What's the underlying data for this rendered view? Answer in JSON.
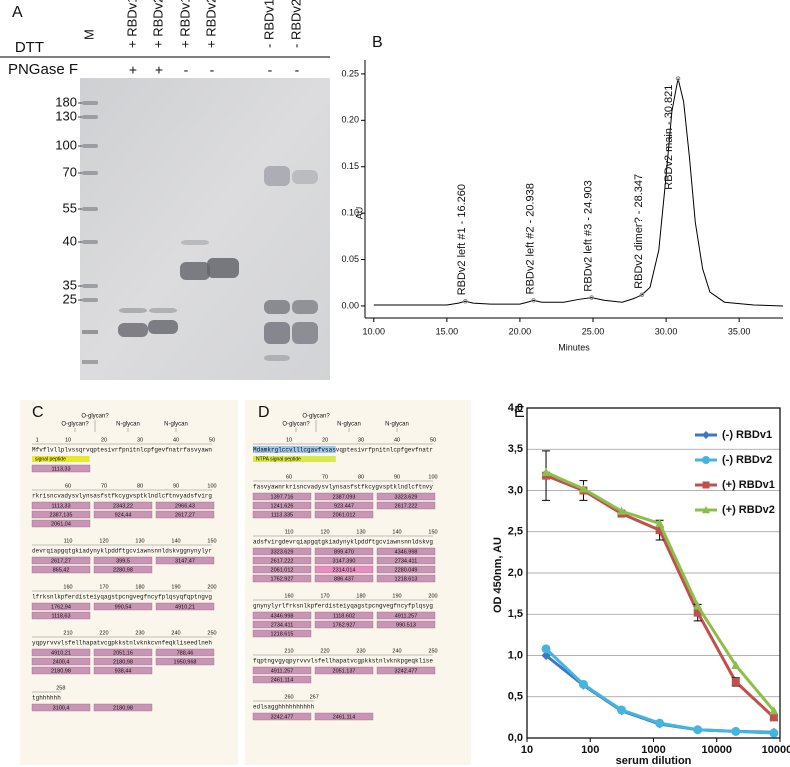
{
  "panel_labels": [
    "A",
    "B",
    "C",
    "D",
    "E"
  ],
  "gel": {
    "row_labels": [
      "DTT",
      "PNGase F"
    ],
    "marker_lane": "M",
    "lanes": [
      {
        "name": "+ RBDv1",
        "pngase": "+"
      },
      {
        "name": "+ RBDv2",
        "pngase": "+"
      },
      {
        "name": "+ RBDv1",
        "pngase": "-"
      },
      {
        "name": "+ RBDv2",
        "pngase": "-"
      },
      {
        "name": "- RBDv1",
        "pngase": "-"
      },
      {
        "name": "- RBDv2",
        "pngase": "-"
      }
    ],
    "mw_markers": [
      180,
      130,
      100,
      70,
      55,
      40,
      35,
      25
    ]
  },
  "chart_data": [
    {
      "type": "line",
      "y_label": "AU",
      "x_label": "Minutes",
      "xlim": [
        9.4,
        38
      ],
      "ylim": [
        -0.013,
        0.265
      ],
      "xticks": [
        {
          "value": 10,
          "label": "10.00"
        },
        {
          "value": 15,
          "label": "15.00"
        },
        {
          "value": 20,
          "label": "20.00"
        },
        {
          "value": 25,
          "label": "25.00"
        },
        {
          "value": 30,
          "label": "30.00"
        },
        {
          "value": 35,
          "label": "35.00"
        }
      ],
      "yticks": [
        {
          "value": 0,
          "label": "0.00"
        },
        {
          "value": 0.05,
          "label": "0.05"
        },
        {
          "value": 0.1,
          "label": "0.10"
        },
        {
          "value": 0.15,
          "label": "0.15"
        },
        {
          "value": 0.2,
          "label": "0.20"
        },
        {
          "value": 0.25,
          "label": "0.25"
        }
      ],
      "x": [
        10,
        12,
        14,
        15,
        15.8,
        16.26,
        16.8,
        18,
        20,
        20.5,
        20.94,
        21.5,
        23,
        24,
        24.9,
        25.8,
        27,
        27.8,
        28.35,
        28.9,
        29.5,
        30,
        30.4,
        30.82,
        31.2,
        31.6,
        32,
        32.5,
        33,
        34,
        36,
        38
      ],
      "series": [
        {
          "color": "#000000",
          "values": [
            0.001,
            0.001,
            0.001,
            0.001,
            0.003,
            0.005,
            0.003,
            0.002,
            0.002,
            0.004,
            0.006,
            0.004,
            0.004,
            0.007,
            0.009,
            0.006,
            0.004,
            0.008,
            0.012,
            0.02,
            0.06,
            0.14,
            0.21,
            0.245,
            0.22,
            0.16,
            0.09,
            0.04,
            0.015,
            0.004,
            0.001,
            0
          ]
        }
      ],
      "annotations": [
        {
          "text": "RBDv2 left #1 - 16.260",
          "x": 16.26,
          "y": 0.005
        },
        {
          "text": "RBDv2 left #2 - 20.938",
          "x": 20.938,
          "y": 0.006
        },
        {
          "text": "RBDv2 left #3 - 24.903",
          "x": 24.903,
          "y": 0.009
        },
        {
          "text": "RBDv2 dimer? - 28.347",
          "x": 28.347,
          "y": 0.012
        },
        {
          "text": "RBDv2 main - 30.821",
          "x": 30.821,
          "y": 0.245
        }
      ]
    },
    {
      "type": "line",
      "x_scale": "log",
      "y_label": "OD 450nm, AU",
      "x_label": "serum dilution",
      "xlim": [
        10,
        100000
      ],
      "ylim": [
        0,
        4
      ],
      "xticks": [
        10,
        100,
        1000,
        10000,
        100000
      ],
      "yticks": [
        {
          "value": 0,
          "label": "0,0"
        },
        {
          "value": 0.5,
          "label": "0,5"
        },
        {
          "value": 1,
          "label": "1,0"
        },
        {
          "value": 1.5,
          "label": "1,5"
        },
        {
          "value": 2,
          "label": "2,0"
        },
        {
          "value": 2.5,
          "label": "2,5"
        },
        {
          "value": 3,
          "label": "3,0"
        },
        {
          "value": 3.5,
          "label": "3,5"
        },
        {
          "value": 4,
          "label": "4,0"
        }
      ],
      "grid": true,
      "legend": "upper right",
      "x": [
        20,
        78,
        312,
        1250,
        5000,
        20000,
        80000
      ],
      "series": [
        {
          "name": "(-) RBDv1",
          "color": "#3a78c3",
          "marker": "diamond",
          "values": [
            1.0,
            0.64,
            0.33,
            0.17,
            0.1,
            0.08,
            0.07
          ]
        },
        {
          "name": "(-) RBDv2",
          "color": "#45b5e0",
          "marker": "circle",
          "values": [
            1.08,
            0.65,
            0.34,
            0.18,
            0.1,
            0.08,
            0.06
          ]
        },
        {
          "name": "(+) RBDv1",
          "color": "#c0504d",
          "marker": "square",
          "values": [
            3.18,
            3.0,
            2.72,
            2.52,
            1.52,
            0.68,
            0.25
          ],
          "errors": [
            0.3,
            0.12,
            0.03,
            0.12,
            0.1,
            0.05,
            0.03
          ]
        },
        {
          "name": "(+) RBDv2",
          "color": "#8cbf4a",
          "marker": "triangle",
          "values": [
            3.22,
            3.02,
            2.75,
            2.6,
            1.6,
            0.88,
            0.33
          ]
        }
      ]
    }
  ],
  "seq_maps": [
    {
      "glycans": [
        "O-glycan?",
        "O-glycan?",
        "N-glycan",
        "N-glycan"
      ],
      "peptide": "signal peptide",
      "rows": [
        {
          "ruler": [
            1,
            10,
            20,
            30,
            40,
            50
          ],
          "seq": "Mfvflvllplvssqrvqptesivrfpnitnlcpfgevfnatrfasvyawn",
          "fragments": [
            "1113,33"
          ]
        },
        {
          "ruler": [
            60,
            70,
            80,
            90,
            100
          ],
          "seq": "rkrisncvadysvlynsasfstfkcygvsptklndlcftnvyadsfvirg",
          "fragments": [
            "1113,33",
            "2343,22",
            "2966,43",
            "2387,135",
            "924,44",
            "2617,27",
            "2061,04"
          ]
        },
        {
          "ruler": [
            110,
            120,
            130,
            140,
            150
          ],
          "seq": "devrqiapgqtgkiadynyklpddftgcviawnsnnldskvggnynylyr",
          "fragments": [
            "2617,27",
            "399,5",
            "3147,47",
            "865,42",
            "2280,98"
          ]
        },
        {
          "ruler": [
            160,
            170,
            180,
            190,
            200
          ],
          "seq": "lfrksnlkpferdisteiyqagstpcngvegfncyfplqsyqfqptngvg",
          "fragments": [
            "1762,94",
            "990,54",
            "4910,21",
            "1118,63"
          ]
        },
        {
          "ruler": [
            210,
            220,
            230,
            240,
            250
          ],
          "seq": "yqpyrvvvlsfellhapatvcgpkkstnlvknkcvnfeqkliseedlneh",
          "fragments": [
            "4910,21",
            "2051,16",
            "788,46",
            "2400,4",
            "2180,98",
            "1950,968",
            "2180,98",
            "938,44"
          ]
        },
        {
          "ruler": [
            258
          ],
          "seq": "tghhhhhh",
          "fragments": [
            "3100,4",
            "2180,98"
          ]
        }
      ]
    },
    {
      "glycans": [
        "O-glycan?",
        "O-glycan?",
        "N-glycan",
        "N-glycan"
      ],
      "peptide": "NTPA signal peptide",
      "rows": [
        {
          "ruler": [
            10,
            20,
            30,
            40,
            50
          ],
          "seq": "Mdamkrglccvlllcgavfvsasvqptesivrfpnitnlcpfgevfnatr",
          "fragments": []
        },
        {
          "ruler": [
            60,
            70,
            80,
            90,
            100
          ],
          "seq": "fasvyawnrkrisncvadysvlynsasfstfkcygvsptklndlcftnvy",
          "fragments": [
            "1397.716",
            "2387.093",
            "3323.629",
            "1241.626",
            "923.447",
            "2617.222",
            "1113.335",
            "2061.012"
          ]
        },
        {
          "ruler": [
            110,
            120,
            130,
            140,
            150
          ],
          "seq": "adsfvirgdevrqiapgqtgkiadynyklpddftgcviawnsnnldskvg",
          "fragments": [
            "3323.629",
            "899.470",
            "4346.998",
            "2617.222",
            "3147.390",
            "2734.411",
            "2061.012",
            "2314.014",
            "2280.049",
            "1762.927",
            "886.437",
            "1218.613"
          ]
        },
        {
          "ruler": [
            160,
            170,
            180,
            190,
            200
          ],
          "seq": "gnynylyrlfrksnlkpferdisteiyqagstpcngvegfncyfplqsyg",
          "fragments": [
            "4346.998",
            "1118.602",
            "4911.257",
            "2734.411",
            "1762.927",
            "990.513",
            "1218.615"
          ]
        },
        {
          "ruler": [
            210,
            220,
            230,
            240,
            250
          ],
          "seq": "fqptngvgyqpyrvvvlsfellhapatvcgpkkstnlvknkpgeqklise",
          "fragments": [
            "4911.257",
            "2051.137",
            "3242.477",
            "2461.114"
          ]
        },
        {
          "ruler": [
            260,
            267
          ],
          "seq": "edlsagghhhhhhhhhh",
          "fragments": [
            "3242.477",
            "2461.114"
          ]
        }
      ]
    }
  ]
}
